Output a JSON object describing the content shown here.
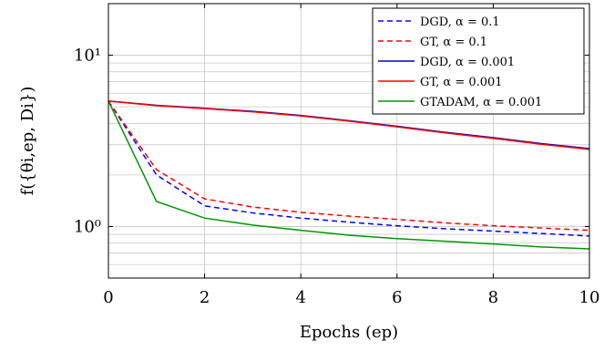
{
  "chart_data": {
    "type": "line",
    "xlabel": "Epochs (ep)",
    "ylabel": "f({θi,ep, Di})",
    "xlim": [
      0,
      10
    ],
    "ylim": [
      0.5,
      20
    ],
    "yscale": "log",
    "grid": true,
    "legend_position": "top-right",
    "x_ticks": [
      0,
      2,
      4,
      6,
      8,
      10
    ],
    "x_tick_labels": [
      "0",
      "2",
      "4",
      "6",
      "8",
      "10"
    ],
    "y_ticks": [
      1,
      10
    ],
    "y_tick_labels": [
      "10⁰",
      "10¹"
    ],
    "x": [
      0,
      1,
      2,
      3,
      4,
      5,
      6,
      7,
      8,
      9,
      10
    ],
    "series": [
      {
        "name": "DGD, α = 0.1",
        "color": "#0000ff",
        "dash": "dashed",
        "values": [
          5.4,
          2.0,
          1.32,
          1.2,
          1.12,
          1.06,
          1.01,
          0.97,
          0.94,
          0.91,
          0.88
        ]
      },
      {
        "name": "GT, α = 0.1",
        "color": "#ff0000",
        "dash": "dashed",
        "values": [
          5.4,
          2.15,
          1.45,
          1.3,
          1.21,
          1.15,
          1.1,
          1.05,
          1.01,
          0.98,
          0.95
        ]
      },
      {
        "name": "DGD, α = 0.001",
        "color": "#0000bb",
        "dash": "solid",
        "values": [
          5.4,
          5.1,
          4.9,
          4.7,
          4.45,
          4.15,
          3.85,
          3.55,
          3.3,
          3.05,
          2.85
        ]
      },
      {
        "name": "GT, α = 0.001",
        "color": "#ff0000",
        "dash": "solid",
        "values": [
          5.4,
          5.08,
          4.88,
          4.67,
          4.42,
          4.12,
          3.82,
          3.52,
          3.27,
          3.02,
          2.82
        ]
      },
      {
        "name": "GTADAM, α = 0.001",
        "color": "#009900",
        "dash": "solid",
        "values": [
          5.4,
          1.4,
          1.12,
          1.02,
          0.95,
          0.89,
          0.85,
          0.82,
          0.79,
          0.76,
          0.74
        ]
      }
    ]
  }
}
